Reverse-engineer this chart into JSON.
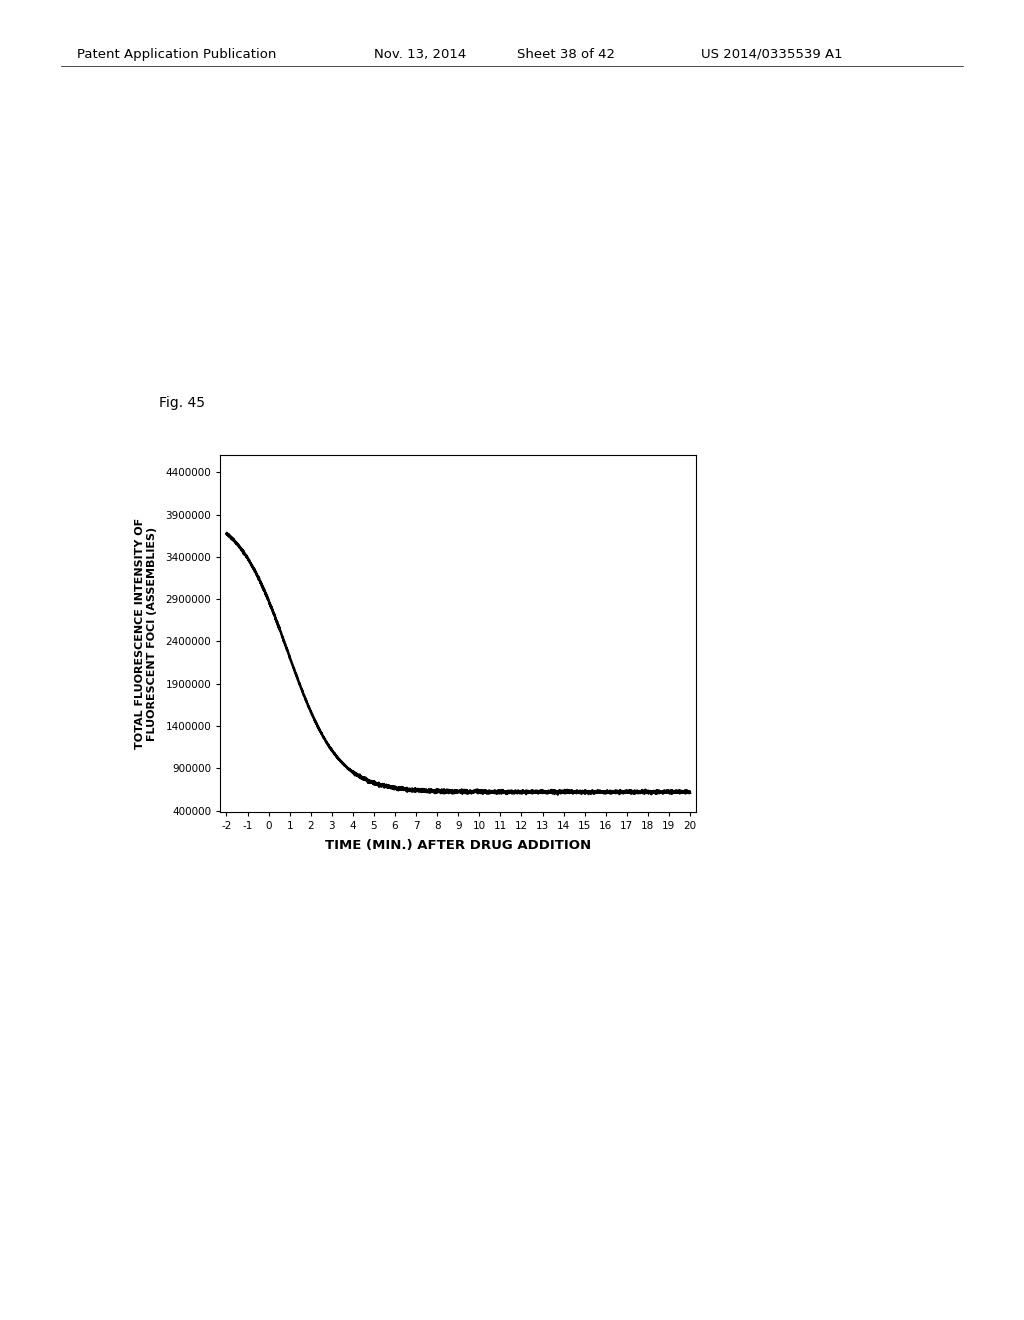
{
  "title_header": "Patent Application Publication",
  "title_date": "Nov. 13, 2014",
  "title_sheet": "Sheet 38 of 42",
  "title_patent": "US 2014/0335539 A1",
  "fig_label": "Fig. 45",
  "xlabel": "TIME (MIN.) AFTER DRUG ADDITION",
  "ylabel_line1": "TOTAL FLUORESCENCE INTENSITY OF",
  "ylabel_line2": "FLUORESCENT FOCI (ASSEMBLIES)",
  "x_start": -2,
  "x_end": 20,
  "yticks": [
    400000,
    900000,
    1400000,
    1900000,
    2400000,
    2900000,
    3400000,
    3900000,
    4400000
  ],
  "xticks": [
    -2,
    -1,
    0,
    1,
    2,
    3,
    4,
    5,
    6,
    7,
    8,
    9,
    10,
    11,
    12,
    13,
    14,
    15,
    16,
    17,
    18,
    19,
    20
  ],
  "line_color": "#000000",
  "background_color": "#ffffff",
  "y_high": 3950000,
  "y_low": 620000,
  "x_inflection": 0.9,
  "decay_tau": 1.2
}
